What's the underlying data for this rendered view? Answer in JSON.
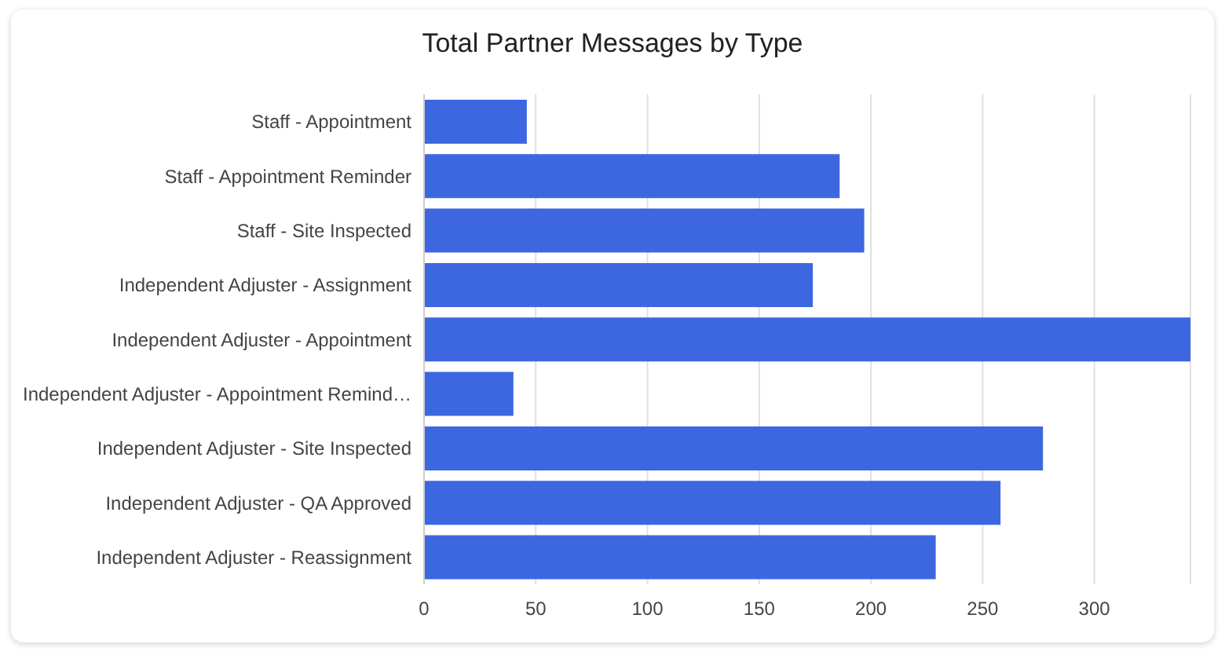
{
  "chart_data": {
    "type": "bar",
    "orientation": "horizontal",
    "title": "Total Partner Messages by Type",
    "categories": [
      "Staff - Appointment",
      "Staff - Appointment Reminder",
      "Staff - Site Inspected",
      "Independent Adjuster - Assignment",
      "Independent Adjuster - Appointment",
      "Independent Adjuster - Appointment Remind…",
      "Independent Adjuster - Site Inspected",
      "Independent Adjuster - QA Approved",
      "Independent Adjuster - Reassignment"
    ],
    "values": [
      46,
      186,
      197,
      174,
      343,
      40,
      277,
      258,
      229
    ],
    "color": "#3d67e0",
    "xlim": [
      0,
      343
    ],
    "xticks": [
      0,
      50,
      100,
      150,
      200,
      250,
      300
    ],
    "grid": "x"
  }
}
